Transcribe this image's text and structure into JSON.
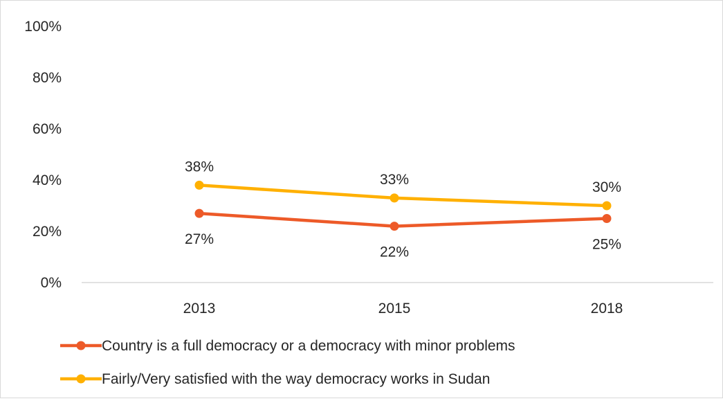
{
  "chart_data": {
    "type": "line",
    "categories": [
      "2013",
      "2015",
      "2018"
    ],
    "ylim": [
      0,
      100
    ],
    "yticks": [
      "0%",
      "20%",
      "40%",
      "60%",
      "80%",
      "100%"
    ],
    "ytick_values": [
      0,
      20,
      40,
      60,
      80,
      100
    ],
    "grid": false,
    "legend_position": "bottom",
    "series": [
      {
        "name": "Country is a full democracy or a democracy with minor problems",
        "values": [
          27,
          22,
          25
        ],
        "labels": [
          "27%",
          "22%",
          "25%"
        ],
        "label_position": "below",
        "color": "#ED5A28"
      },
      {
        "name": "Fairly/Very satisfied with the way democracy works in Sudan",
        "values": [
          38,
          33,
          30
        ],
        "labels": [
          "38%",
          "33%",
          "30%"
        ],
        "label_position": "above",
        "color": "#FFB000"
      }
    ],
    "axis_color": "#d9d9d9"
  }
}
